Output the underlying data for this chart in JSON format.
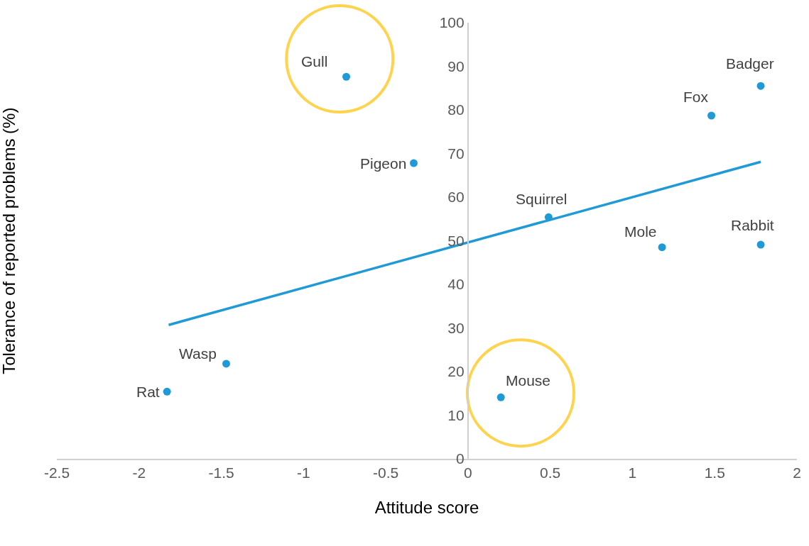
{
  "chart_data": {
    "type": "scatter",
    "xlabel": "Attitude score",
    "ylabel": "Tolerance of reported problems (%)",
    "xlim": [
      -2.5,
      2
    ],
    "xticks": [
      -2.5,
      -2,
      -1.5,
      -1,
      -0.5,
      0,
      0.5,
      1,
      1.5,
      2
    ],
    "ylim": [
      0,
      100
    ],
    "yticks": [
      0,
      10,
      20,
      30,
      40,
      50,
      60,
      70,
      80,
      90,
      100
    ],
    "series": [
      {
        "marker": "circle",
        "color": "#1f9ad6",
        "x": [
          -0.74,
          -0.33,
          1.78,
          1.48,
          0.49,
          1.18,
          1.78,
          -1.47,
          -1.83,
          0.2
        ],
        "values": [
          87.6,
          67.8,
          85.5,
          78.7,
          55.4,
          48.5,
          49.1,
          21.8,
          15.4,
          14.1
        ]
      },
      {
        "type": "line",
        "color": "#1f9ad6",
        "x": [
          -1.82,
          1.78
        ],
        "values": [
          30.7,
          68.1
        ]
      },
      {
        "type": "bubble",
        "color": "#ffc000",
        "x": [
          -0.78,
          0.32
        ],
        "values": [
          91.7,
          15.1
        ],
        "sizes": [
          1,
          1
        ]
      }
    ],
    "annotations": [
      {
        "text": "Gull",
        "x": -0.74,
        "y": 87.6
      },
      {
        "text": "Pigeon",
        "x": -0.33,
        "y": 67.8
      },
      {
        "text": "Badger",
        "x": 1.78,
        "y": 85.5
      },
      {
        "text": "Fox",
        "x": 1.48,
        "y": 78.7
      },
      {
        "text": "Squirrel",
        "x": 0.49,
        "y": 55.4
      },
      {
        "text": "Mole",
        "x": 1.18,
        "y": 48.5
      },
      {
        "text": "Rabbit",
        "x": 1.78,
        "y": 49.1
      },
      {
        "text": "Wasp",
        "x": -1.47,
        "y": 21.8
      },
      {
        "text": "Rat",
        "x": -1.83,
        "y": 15.4
      },
      {
        "text": "Mouse",
        "x": 0.2,
        "y": 14.1
      }
    ]
  }
}
